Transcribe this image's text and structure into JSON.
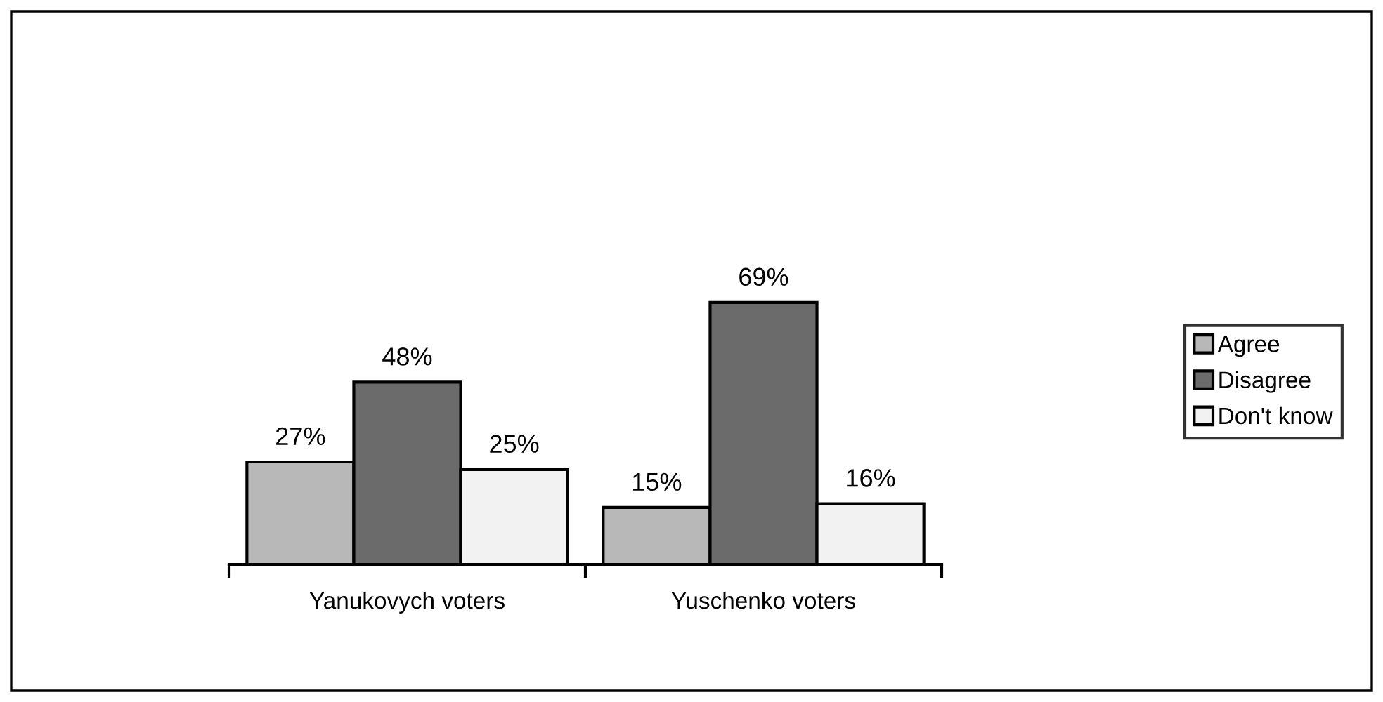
{
  "chart_data": {
    "type": "bar",
    "categories": [
      "Yanukovych voters",
      "Yuschenko voters"
    ],
    "series": [
      {
        "name": "Agree",
        "color": "#b8b8b8",
        "values": [
          27,
          15
        ],
        "value_labels": [
          "27%",
          "15%"
        ]
      },
      {
        "name": "Disagree",
        "color": "#6b6b6b",
        "values": [
          48,
          69
        ],
        "value_labels": [
          "48%",
          "69%"
        ]
      },
      {
        "name": "Don't know",
        "color": "#f2f2f2",
        "values": [
          25,
          16
        ],
        "value_labels": [
          "25%",
          "16%"
        ]
      }
    ],
    "legend": "right",
    "tick_labels": "x"
  }
}
